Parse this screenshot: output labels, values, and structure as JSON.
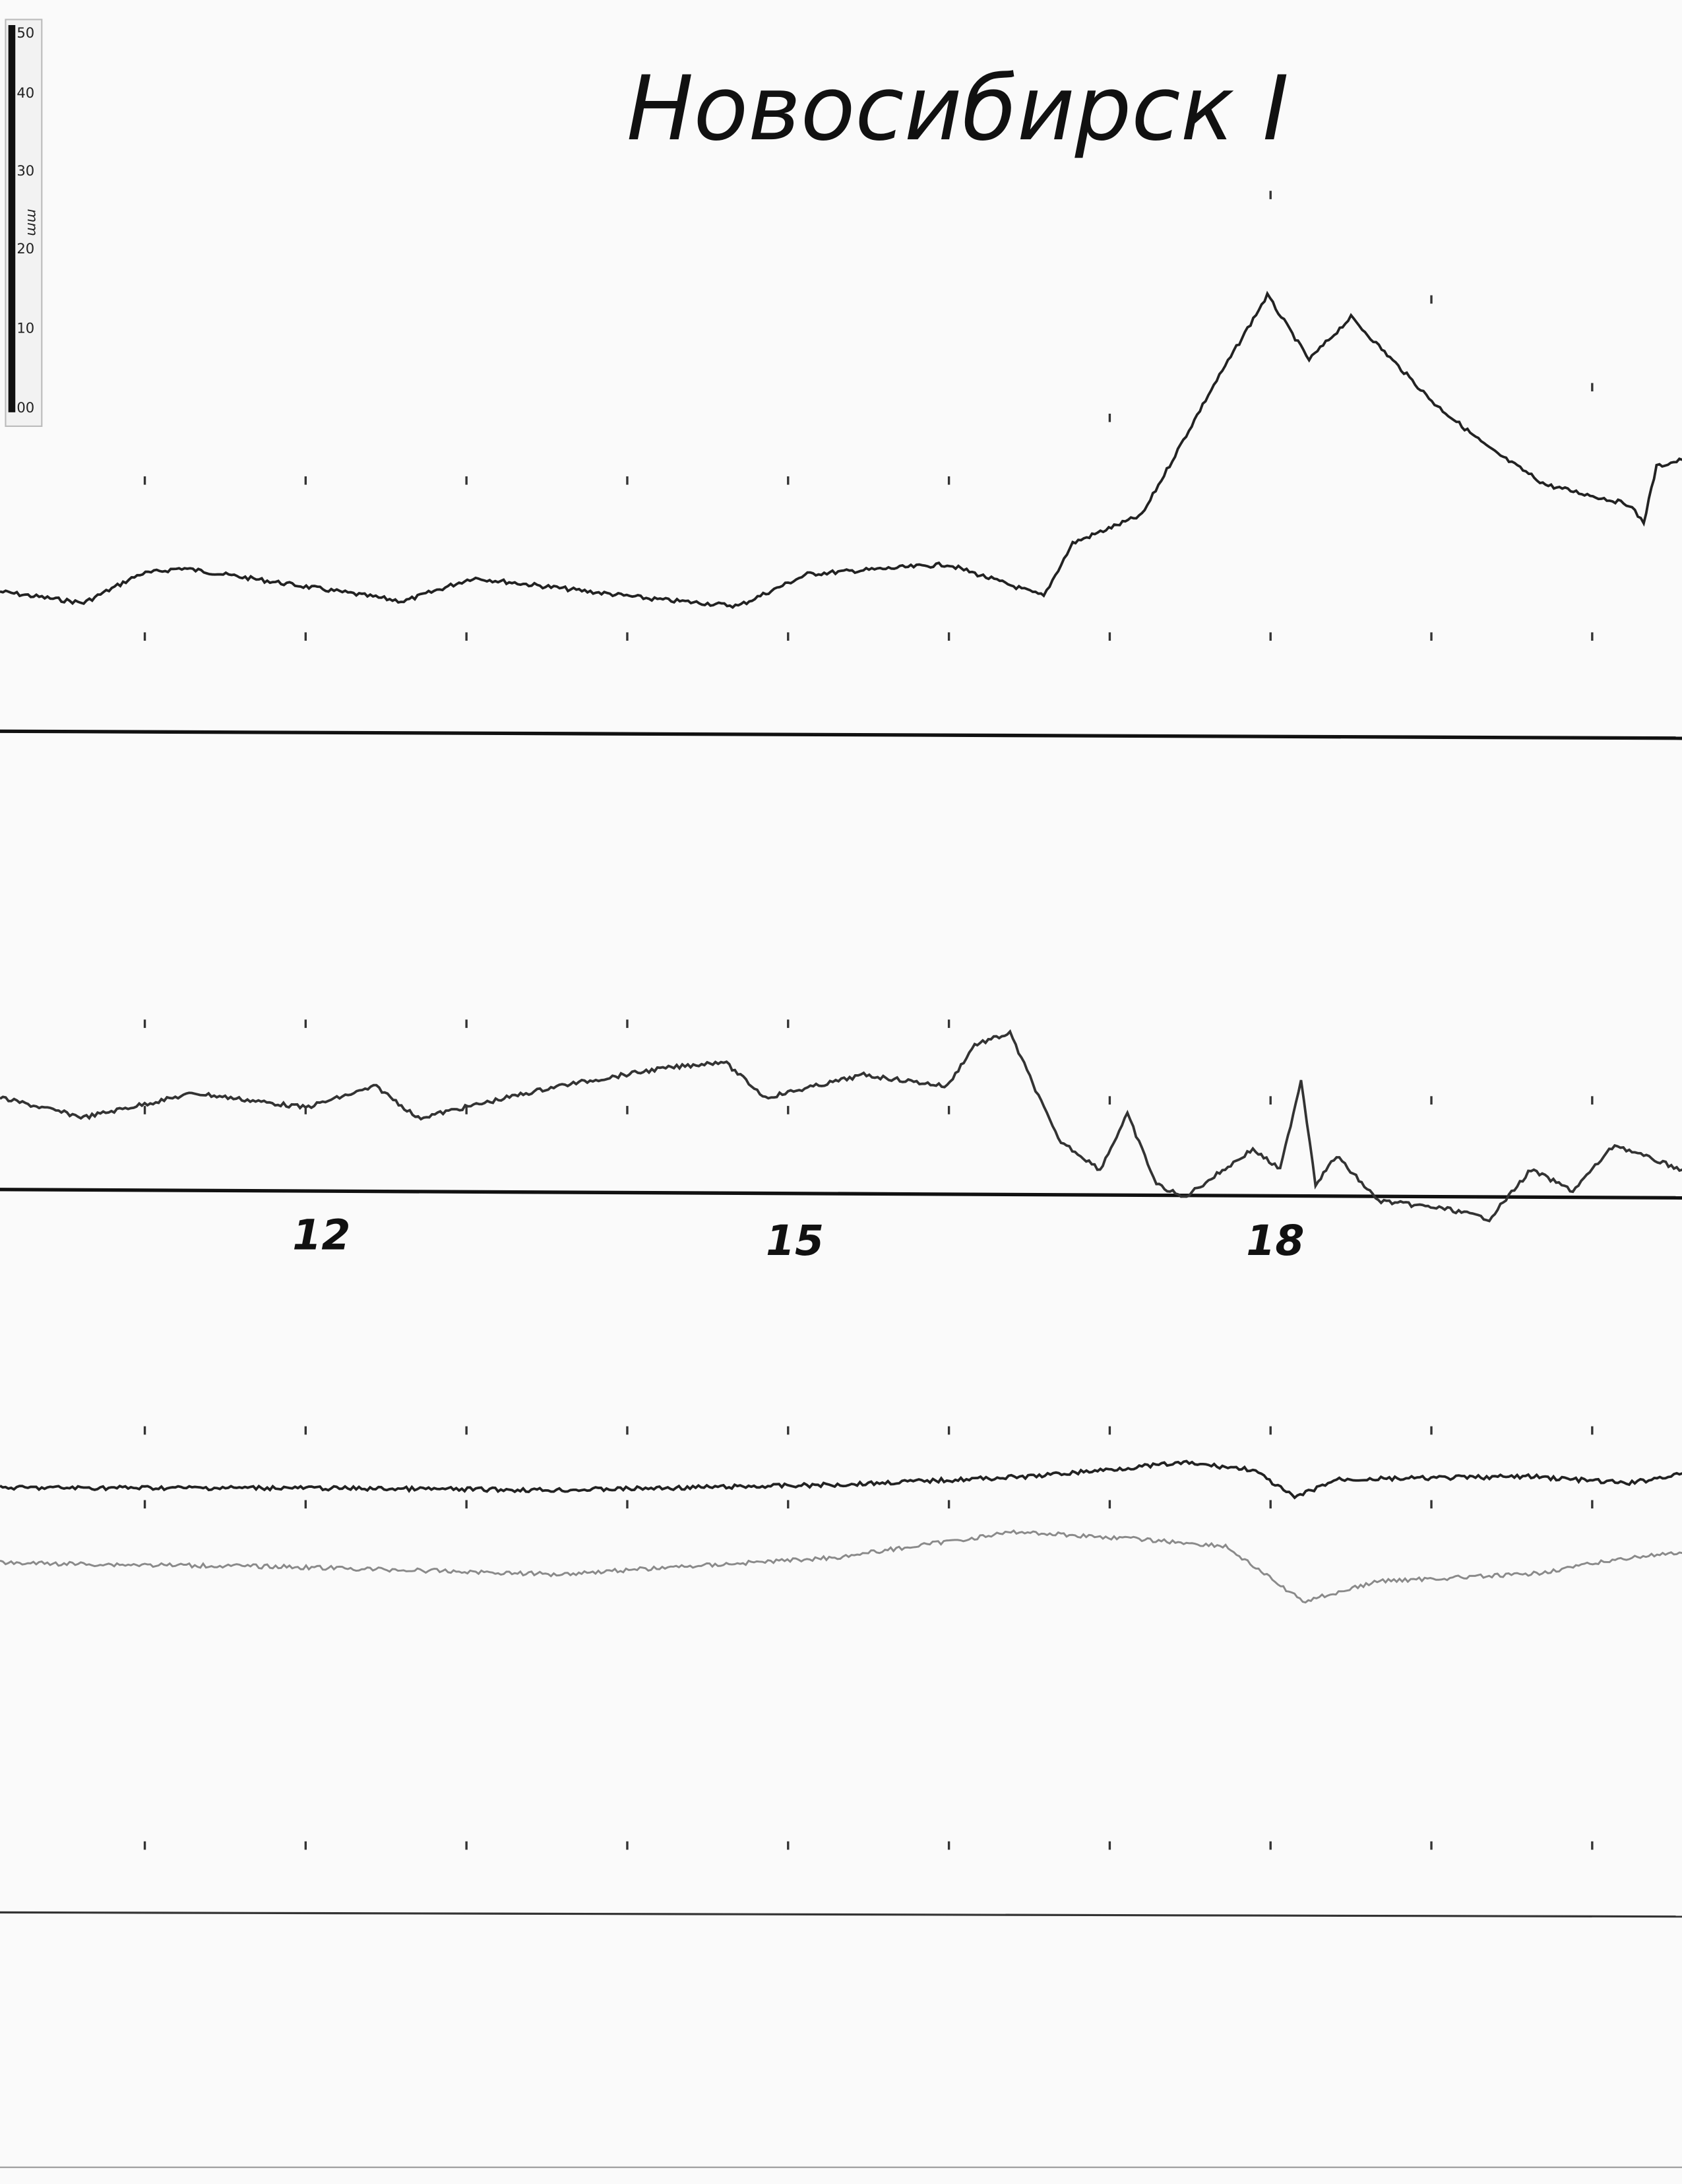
{
  "title": "Новосибирск I",
  "scale_bar": {
    "unit": "mm",
    "labels": [
      "50",
      "40",
      "30",
      "20",
      "10",
      "00"
    ]
  },
  "chart_data": {
    "type": "line",
    "title": "Новосибирск I",
    "x_unit": "hour",
    "xlim": [
      10.1,
      20.56
    ],
    "x_tick_labels": [
      "12",
      "15",
      "18"
    ],
    "x_tick_values": [
      12,
      15,
      18
    ],
    "hour_marks": [
      11,
      12,
      13,
      14,
      15,
      16,
      17,
      18,
      19,
      20
    ],
    "y_unit": "mm deflection above baseline (approx.)",
    "grid": false,
    "series": [
      {
        "color": "#222222",
        "baseline": "line-1",
        "x": [
          10.1,
          10.62,
          10.97,
          11.23,
          11.83,
          12.61,
          13.04,
          14.17,
          14.69,
          15.12,
          15.99,
          16.59,
          16.77,
          17.2,
          17.63,
          17.98,
          18.24,
          18.5,
          19.02,
          19.36,
          19.71,
          20.23,
          20.32,
          20.4,
          20.56
        ],
        "y": [
          18.8,
          17.3,
          21.1,
          21.9,
          20.0,
          17.5,
          20.6,
          17.8,
          16.9,
          21.1,
          22.4,
          18.2,
          25.2,
          28.9,
          45.4,
          57.9,
          49.4,
          55.0,
          43.6,
          37.7,
          32.9,
          30.3,
          27.9,
          35.3,
          36.2
        ]
      },
      {
        "color": "#333333",
        "baseline": "line-2",
        "x": [
          10.1,
          10.62,
          11.31,
          12.0,
          12.44,
          12.7,
          13.56,
          14.17,
          14.6,
          14.86,
          15.47,
          15.99,
          16.16,
          16.38,
          16.68,
          16.94,
          17.11,
          17.29,
          17.46,
          17.89,
          18.06,
          18.19,
          18.28,
          18.41,
          18.67,
          19.1,
          19.36,
          19.62,
          19.88,
          20.14,
          20.32,
          20.56
        ],
        "y": [
          12.3,
          9.7,
          12.9,
          11.0,
          13.8,
          9.6,
          13.8,
          16.0,
          17.1,
          12.3,
          15.3,
          13.8,
          19.3,
          20.8,
          6.8,
          2.8,
          10.1,
          0.9,
          -0.9,
          5.5,
          2.8,
          14.7,
          0.9,
          4.6,
          -1.3,
          -2.4,
          -3.7,
          2.8,
          0.0,
          6.1,
          4.6,
          2.8
        ]
      },
      {
        "color": "#222222",
        "baseline": "line-3",
        "x": [
          10.1,
          11.83,
          13.56,
          15.29,
          16.51,
          17.46,
          17.89,
          18.15,
          18.41,
          19.62,
          20.23,
          20.56
        ],
        "y": [
          56.4,
          56.4,
          56.1,
          56.8,
          57.9,
          59.7,
          58.8,
          55.1,
          57.5,
          57.9,
          57.0,
          58.3
        ]
      },
      {
        "color": "#8a8a8a",
        "baseline": "line-3",
        "x": [
          10.1,
          11.83,
          13.56,
          15.29,
          16.42,
          17.2,
          17.72,
          18.2,
          18.68,
          19.62,
          20.23,
          20.56
        ],
        "y": [
          46.5,
          46.0,
          45.0,
          47.2,
          50.6,
          49.6,
          48.7,
          41.4,
          44.1,
          45.0,
          47.2,
          47.8
        ]
      }
    ]
  }
}
